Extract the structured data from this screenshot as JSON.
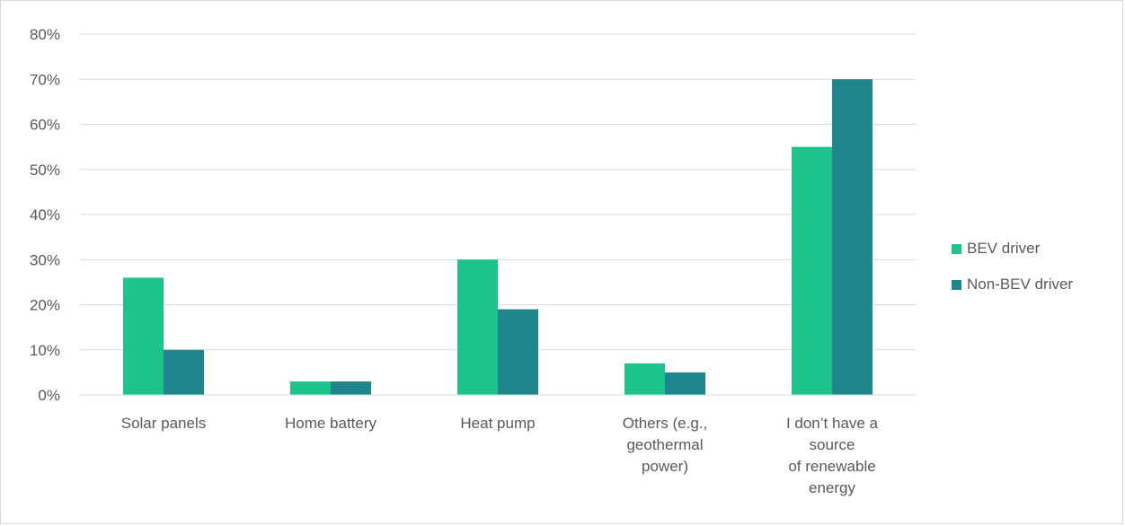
{
  "chart_data": {
    "type": "bar",
    "categories": [
      [
        "Solar panels"
      ],
      [
        "Home battery"
      ],
      [
        "Heat pump"
      ],
      [
        "Others (e.g.,",
        "geothermal",
        "power)"
      ],
      [
        "I don’t have a",
        "source",
        "of renewable",
        "energy"
      ]
    ],
    "series": [
      {
        "name": "BEV driver",
        "color": "#1ec28b",
        "values": [
          26,
          3,
          30,
          7,
          55
        ]
      },
      {
        "name": "Non-BEV driver",
        "color": "#1f868b",
        "values": [
          10,
          3,
          19,
          5,
          70
        ]
      }
    ],
    "y_ticks": [
      "0%",
      "10%",
      "20%",
      "30%",
      "40%",
      "50%",
      "60%",
      "70%",
      "80%"
    ],
    "ylim": [
      0,
      80
    ],
    "grid": true,
    "legend_position": "right"
  }
}
